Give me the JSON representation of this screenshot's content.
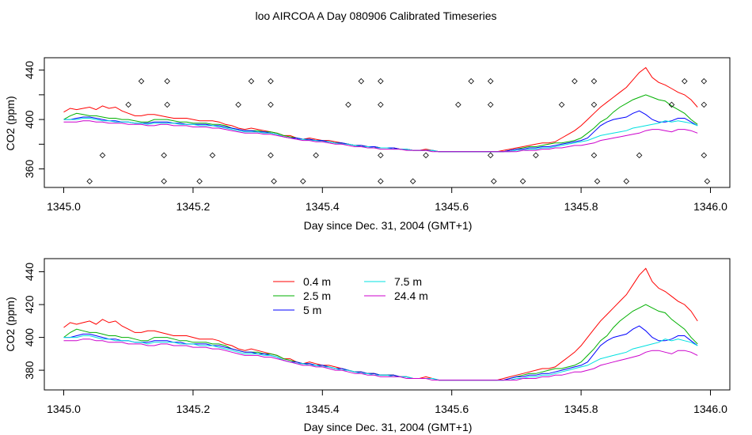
{
  "figure_title": "loo AIRCOA A  Day 080906  Calibrated Timeseries",
  "chart_data": [
    {
      "type": "scatter",
      "panel": "top",
      "xlabel": "Day since Dec. 31, 2004 (GMT+1)",
      "ylabel": "CO2 (ppm)",
      "xlim": [
        1344.97,
        1346.03
      ],
      "ylim": [
        345,
        450
      ],
      "x_ticks": [
        1345.0,
        1345.2,
        1345.4,
        1345.6,
        1345.8,
        1346.0
      ],
      "x_tick_labels": [
        "1345.0",
        "1345.2",
        "1345.4",
        "1345.6",
        "1345.8",
        "1346.0"
      ],
      "y_ticks": [
        360,
        380,
        400,
        420,
        440
      ],
      "y_tick_labels": [
        "360",
        "",
        "400",
        "",
        "440"
      ],
      "x_shared": [
        1345.0,
        1345.01,
        1345.02,
        1345.03,
        1345.04,
        1345.05,
        1345.06,
        1345.07,
        1345.08,
        1345.09,
        1345.1,
        1345.11,
        1345.12,
        1345.13,
        1345.14,
        1345.15,
        1345.16,
        1345.17,
        1345.18,
        1345.19,
        1345.2,
        1345.21,
        1345.22,
        1345.23,
        1345.24,
        1345.25,
        1345.26,
        1345.27,
        1345.28,
        1345.29,
        1345.3,
        1345.31,
        1345.32,
        1345.33,
        1345.34,
        1345.35,
        1345.36,
        1345.37,
        1345.38,
        1345.39,
        1345.4,
        1345.41,
        1345.42,
        1345.43,
        1345.44,
        1345.45,
        1345.46,
        1345.47,
        1345.48,
        1345.49,
        1345.5,
        1345.51,
        1345.52,
        1345.53,
        1345.54,
        1345.55,
        1345.56,
        1345.57,
        1345.58,
        1345.59,
        1345.6,
        1345.61,
        1345.62,
        1345.63,
        1345.64,
        1345.65,
        1345.66,
        1345.67,
        1345.68,
        1345.69,
        1345.7,
        1345.71,
        1345.72,
        1345.73,
        1345.74,
        1345.75,
        1345.76,
        1345.77,
        1345.78,
        1345.79,
        1345.8,
        1345.81,
        1345.82,
        1345.83,
        1345.84,
        1345.85,
        1345.86,
        1345.87,
        1345.88,
        1345.89,
        1345.9,
        1345.91,
        1345.92,
        1345.93,
        1345.94,
        1345.95,
        1345.96,
        1345.97,
        1345.98
      ],
      "series": [
        {
          "name": "0.4 m",
          "color": "#ff0000",
          "values": [
            406,
            409,
            408,
            409,
            410,
            408,
            411,
            409,
            410,
            407,
            405,
            403,
            403,
            404,
            404,
            403,
            402,
            401,
            401,
            401,
            400,
            399,
            399,
            399,
            398,
            396,
            395,
            393,
            392,
            393,
            392,
            391,
            390,
            389,
            387,
            387,
            385,
            384,
            385,
            384,
            383,
            383,
            382,
            381,
            380,
            379,
            379,
            378,
            378,
            377,
            377,
            377,
            376,
            376,
            375,
            375,
            376,
            375,
            374,
            374,
            374,
            374,
            374,
            374,
            374,
            374,
            374,
            374,
            375,
            376,
            377,
            378,
            379,
            380,
            381,
            381,
            382,
            385,
            388,
            391,
            395,
            400,
            405,
            410,
            414,
            418,
            422,
            426,
            432,
            438,
            442,
            434,
            430,
            428,
            425,
            422,
            420,
            416,
            410
          ]
        },
        {
          "name": "2.5 m",
          "color": "#00b000",
          "values": [
            400,
            403,
            405,
            404,
            403,
            403,
            402,
            401,
            401,
            400,
            400,
            399,
            398,
            398,
            400,
            400,
            400,
            399,
            398,
            398,
            397,
            397,
            397,
            396,
            396,
            395,
            393,
            392,
            391,
            391,
            391,
            390,
            390,
            389,
            387,
            386,
            385,
            384,
            384,
            383,
            383,
            382,
            381,
            381,
            380,
            379,
            379,
            378,
            378,
            377,
            377,
            377,
            376,
            376,
            375,
            375,
            375,
            375,
            374,
            374,
            374,
            374,
            374,
            374,
            374,
            374,
            374,
            374,
            374,
            375,
            376,
            377,
            378,
            378,
            379,
            380,
            381,
            381,
            382,
            383,
            385,
            389,
            393,
            398,
            401,
            406,
            410,
            413,
            416,
            418,
            420,
            418,
            416,
            415,
            411,
            408,
            405,
            400,
            396
          ]
        },
        {
          "name": "5 m",
          "color": "#0000ff",
          "values": [
            400,
            400,
            401,
            402,
            402,
            401,
            400,
            399,
            399,
            398,
            398,
            397,
            397,
            397,
            398,
            398,
            398,
            397,
            397,
            396,
            396,
            396,
            396,
            395,
            395,
            394,
            393,
            392,
            391,
            391,
            390,
            390,
            389,
            388,
            386,
            385,
            385,
            384,
            384,
            383,
            383,
            382,
            381,
            381,
            380,
            379,
            379,
            378,
            378,
            377,
            377,
            377,
            376,
            376,
            375,
            375,
            375,
            375,
            374,
            374,
            374,
            374,
            374,
            374,
            374,
            374,
            374,
            374,
            374,
            375,
            376,
            376,
            377,
            377,
            378,
            378,
            379,
            380,
            381,
            382,
            383,
            385,
            390,
            395,
            398,
            400,
            401,
            402,
            405,
            407,
            404,
            400,
            398,
            398,
            399,
            401,
            401,
            398,
            395
          ]
        },
        {
          "name": "7.5 m",
          "color": "#00e0e0",
          "values": [
            400,
            400,
            400,
            401,
            401,
            400,
            399,
            399,
            398,
            398,
            398,
            397,
            397,
            396,
            397,
            397,
            397,
            397,
            396,
            396,
            396,
            395,
            395,
            395,
            394,
            393,
            392,
            391,
            390,
            390,
            390,
            389,
            389,
            388,
            386,
            385,
            384,
            384,
            383,
            383,
            382,
            382,
            381,
            380,
            380,
            379,
            378,
            378,
            377,
            377,
            377,
            376,
            376,
            376,
            375,
            375,
            375,
            375,
            374,
            374,
            374,
            374,
            374,
            374,
            374,
            374,
            374,
            374,
            374,
            374,
            375,
            375,
            376,
            376,
            377,
            377,
            378,
            379,
            380,
            381,
            382,
            383,
            385,
            387,
            388,
            389,
            390,
            391,
            393,
            394,
            395,
            396,
            397,
            399,
            398,
            399,
            398,
            397,
            395
          ]
        },
        {
          "name": "24.4 m",
          "color": "#cc00cc",
          "values": [
            398,
            398,
            398,
            399,
            399,
            398,
            398,
            397,
            397,
            397,
            396,
            396,
            396,
            395,
            395,
            396,
            396,
            395,
            395,
            395,
            394,
            394,
            394,
            393,
            393,
            392,
            391,
            390,
            389,
            389,
            389,
            388,
            388,
            387,
            386,
            385,
            384,
            383,
            383,
            382,
            382,
            381,
            380,
            380,
            379,
            378,
            378,
            377,
            377,
            376,
            376,
            376,
            376,
            375,
            375,
            375,
            375,
            374,
            374,
            374,
            374,
            374,
            374,
            374,
            374,
            374,
            374,
            374,
            374,
            374,
            374,
            375,
            375,
            375,
            376,
            376,
            377,
            377,
            378,
            379,
            379,
            380,
            381,
            383,
            384,
            385,
            386,
            387,
            388,
            389,
            391,
            392,
            392,
            391,
            390,
            392,
            392,
            391,
            389
          ]
        }
      ],
      "markers": {
        "style": "open-diamond",
        "points": [
          [
            1345.04,
            350
          ],
          [
            1345.06,
            371
          ],
          [
            1345.1,
            412
          ],
          [
            1345.12,
            431
          ],
          [
            1345.155,
            371
          ],
          [
            1345.155,
            350
          ],
          [
            1345.16,
            431
          ],
          [
            1345.16,
            412
          ],
          [
            1345.21,
            350
          ],
          [
            1345.23,
            371
          ],
          [
            1345.27,
            412
          ],
          [
            1345.29,
            431
          ],
          [
            1345.32,
            431
          ],
          [
            1345.32,
            412
          ],
          [
            1345.32,
            371
          ],
          [
            1345.325,
            350
          ],
          [
            1345.37,
            350
          ],
          [
            1345.39,
            371
          ],
          [
            1345.44,
            412
          ],
          [
            1345.46,
            431
          ],
          [
            1345.49,
            431
          ],
          [
            1345.49,
            412
          ],
          [
            1345.49,
            371
          ],
          [
            1345.49,
            350
          ],
          [
            1345.54,
            350
          ],
          [
            1345.56,
            371
          ],
          [
            1345.61,
            412
          ],
          [
            1345.63,
            431
          ],
          [
            1345.66,
            431
          ],
          [
            1345.66,
            412
          ],
          [
            1345.66,
            371
          ],
          [
            1345.665,
            350
          ],
          [
            1345.71,
            350
          ],
          [
            1345.73,
            371
          ],
          [
            1345.77,
            412
          ],
          [
            1345.79,
            431
          ],
          [
            1345.82,
            431
          ],
          [
            1345.82,
            412
          ],
          [
            1345.82,
            371
          ],
          [
            1345.825,
            350
          ],
          [
            1345.87,
            350
          ],
          [
            1345.89,
            371
          ],
          [
            1345.94,
            412
          ],
          [
            1345.96,
            431
          ],
          [
            1345.99,
            431
          ],
          [
            1345.99,
            412
          ],
          [
            1345.99,
            371
          ],
          [
            1345.995,
            350
          ]
        ]
      }
    },
    {
      "type": "line",
      "panel": "bottom",
      "xlabel": "Day since Dec. 31, 2004 (GMT+1)",
      "ylabel": "CO2 (ppm)",
      "xlim": [
        1344.97,
        1346.03
      ],
      "ylim": [
        368,
        448
      ],
      "x_ticks": [
        1345.0,
        1345.2,
        1345.4,
        1345.6,
        1345.8,
        1346.0
      ],
      "x_tick_labels": [
        "1345.0",
        "1345.2",
        "1345.4",
        "1345.6",
        "1345.8",
        "1346.0"
      ],
      "y_ticks": [
        380,
        400,
        420,
        440
      ],
      "y_tick_labels": [
        "380",
        "400",
        "420",
        "440"
      ],
      "legend": {
        "placement": "top-center",
        "entries": [
          {
            "label": "0.4 m",
            "color": "#ff0000"
          },
          {
            "label": "2.5 m",
            "color": "#00b000"
          },
          {
            "label": "5 m",
            "color": "#0000ff"
          },
          {
            "label": "7.5 m",
            "color": "#00e0e0"
          },
          {
            "label": "24.4 m",
            "color": "#cc00cc"
          }
        ]
      },
      "same_series_as_top_panel": true
    }
  ]
}
